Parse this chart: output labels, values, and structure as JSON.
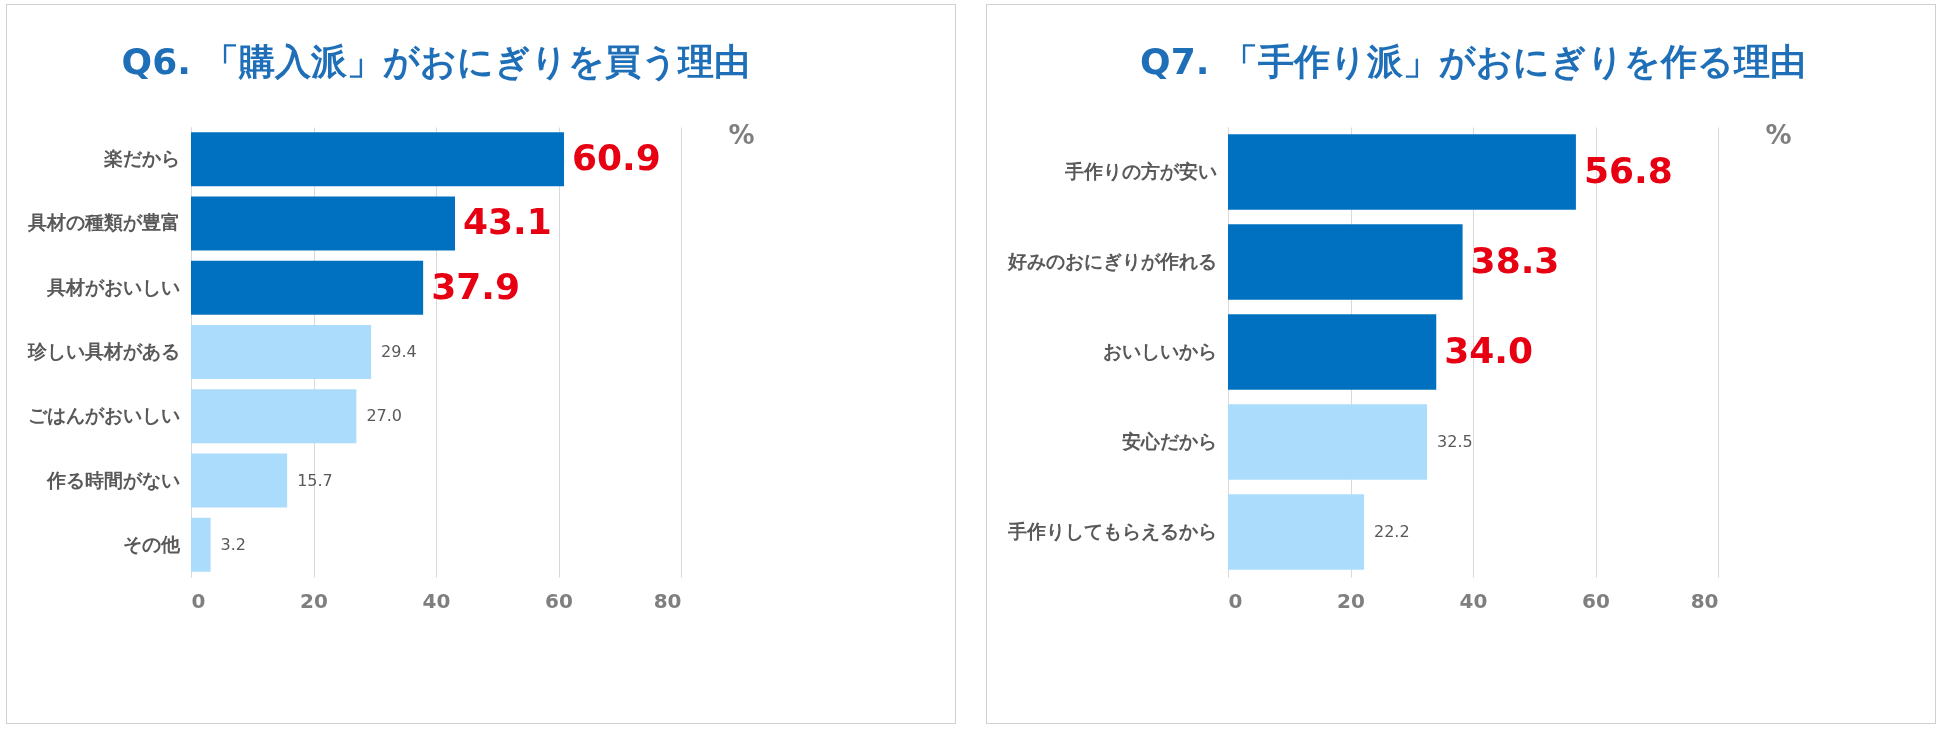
{
  "chart_data": [
    {
      "type": "bar",
      "orientation": "horizontal",
      "title": "Q6. 「購入派」がおにぎりを買う理由",
      "xlabel": "%",
      "categories": [
        "楽だから",
        "具材の種類が豊富",
        "具材がおいしい",
        "珍しい具材がある",
        "ごはんがおいしい",
        "作る時間がない",
        "その他"
      ],
      "values": [
        60.9,
        43.1,
        37.9,
        29.4,
        27.0,
        15.7,
        3.2
      ],
      "colors": [
        "#0070c0",
        "#0070c0",
        "#0070c0",
        "#abdcfc",
        "#abdcfc",
        "#abdcfc",
        "#abdcfc"
      ],
      "value_labels": [
        "60.9",
        "43.1",
        "37.9",
        "29.4",
        "27.0",
        "15.7",
        "3.2"
      ],
      "xlim": [
        0,
        80
      ],
      "xticks": [
        0,
        20,
        40,
        60,
        80
      ],
      "grid": "x"
    },
    {
      "type": "bar",
      "orientation": "horizontal",
      "title": "Q7. 「手作り派」がおにぎりを作る理由",
      "xlabel": "%",
      "categories": [
        "手作りの方が安い",
        "好みのおにぎりが作れる",
        "おいしいから",
        "安心だから",
        "手作りしてもらえるから"
      ],
      "values": [
        56.8,
        38.3,
        34.0,
        32.5,
        22.2
      ],
      "colors": [
        "#0070c0",
        "#0070c0",
        "#0070c0",
        "#abdcfc",
        "#abdcfc"
      ],
      "value_labels": [
        "56.8",
        "38.3",
        "34.0",
        "32.5",
        "22.2"
      ],
      "xlim": [
        0,
        80
      ],
      "xticks": [
        0,
        20,
        40,
        60,
        80
      ],
      "grid": "x"
    }
  ]
}
